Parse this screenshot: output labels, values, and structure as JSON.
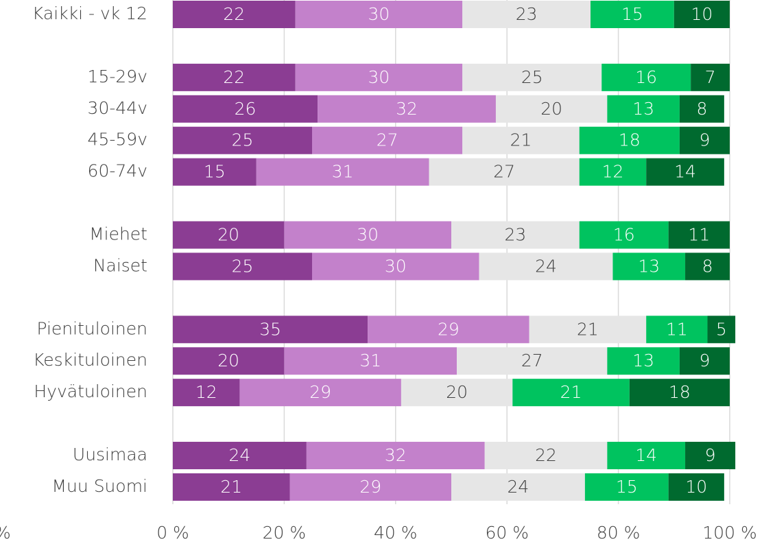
{
  "chart_data": {
    "type": "stacked_barh",
    "categories": [
      "Kaikki - vk 12",
      null,
      "15-29v",
      "30-44v",
      "45-59v",
      "60-74v",
      null,
      "Miehet",
      "Naiset",
      null,
      "Pienituloinen",
      "Keskituloinen",
      "Hyvätuloinen",
      null,
      "Uusimaa",
      "Muu Suomi"
    ],
    "series": [
      {
        "color": "#8b3d93",
        "label_color": "#ffffff",
        "values": [
          22,
          null,
          22,
          26,
          25,
          15,
          null,
          20,
          25,
          null,
          35,
          20,
          12,
          null,
          24,
          21
        ]
      },
      {
        "color": "#c381cb",
        "label_color": "#ffffff",
        "values": [
          30,
          null,
          30,
          32,
          27,
          31,
          null,
          30,
          30,
          null,
          29,
          31,
          29,
          null,
          32,
          29
        ]
      },
      {
        "color": "#e6e6e6",
        "label_color": "#404040",
        "values": [
          23,
          null,
          25,
          20,
          21,
          27,
          null,
          23,
          24,
          null,
          21,
          27,
          20,
          null,
          22,
          24
        ]
      },
      {
        "color": "#00c35f",
        "label_color": "#ffffff",
        "values": [
          15,
          null,
          16,
          13,
          18,
          12,
          null,
          16,
          13,
          null,
          11,
          13,
          21,
          null,
          14,
          15
        ]
      },
      {
        "color": "#006a2f",
        "label_color": "#ffffff",
        "values": [
          10,
          null,
          7,
          8,
          9,
          14,
          null,
          11,
          8,
          null,
          5,
          9,
          18,
          null,
          9,
          10
        ]
      }
    ],
    "xlim": [
      0,
      100
    ],
    "xticks": [
      {
        "value": 0,
        "label": "0 %"
      },
      {
        "value": 20,
        "label": "20 %"
      },
      {
        "value": 40,
        "label": "40 %"
      },
      {
        "value": 60,
        "label": "60 %"
      },
      {
        "value": 80,
        "label": "80 %"
      },
      {
        "value": 100,
        "label": "100 %"
      }
    ],
    "grid": true,
    "left_fragment": "%"
  }
}
